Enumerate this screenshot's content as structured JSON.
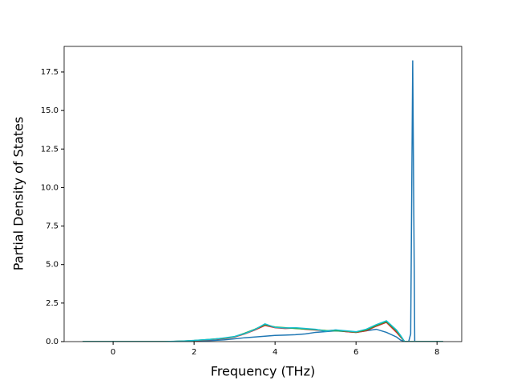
{
  "chart_data": {
    "type": "line",
    "x_label": "Frequency (THz)",
    "y_label": "Partial Density of States",
    "x": [
      -0.75,
      -0.5,
      -0.25,
      0,
      0.25,
      0.5,
      0.75,
      1,
      1.25,
      1.5,
      1.75,
      2,
      2.25,
      2.5,
      2.75,
      3,
      3.25,
      3.5,
      3.75,
      4,
      4.25,
      4.5,
      4.75,
      5,
      5.25,
      5.5,
      5.75,
      6,
      6.25,
      6.5,
      6.75,
      7,
      7.1,
      7.2,
      7.3,
      7.35,
      7.4,
      7.45,
      7.5,
      7.6,
      7.8,
      8,
      8.15
    ],
    "series": [
      {
        "color": "#1f77b4",
        "values": [
          0,
          0,
          0,
          0,
          0,
          0,
          0,
          0,
          0,
          0,
          0,
          0.02,
          0.05,
          0.08,
          0.12,
          0.18,
          0.25,
          0.3,
          0.35,
          0.4,
          0.42,
          0.45,
          0.5,
          0.6,
          0.65,
          0.7,
          0.65,
          0.6,
          0.7,
          0.8,
          0.6,
          0.3,
          0.1,
          0,
          0,
          0.5,
          18.25,
          0,
          0,
          0,
          0,
          0,
          0
        ]
      },
      {
        "color": "#d62728",
        "values": [
          0,
          0,
          0,
          0,
          0,
          0,
          0,
          0,
          0,
          0.01,
          0.03,
          0.06,
          0.1,
          0.15,
          0.2,
          0.3,
          0.5,
          0.75,
          1.05,
          0.9,
          0.85,
          0.88,
          0.8,
          0.75,
          0.7,
          0.75,
          0.65,
          0.6,
          0.7,
          1.0,
          1.25,
          0.6,
          0.3,
          0,
          0,
          0,
          0,
          0,
          0,
          0,
          0,
          0,
          0
        ]
      },
      {
        "color": "#2ca02c",
        "values": [
          0,
          0,
          0,
          0,
          0,
          0,
          0,
          0,
          0,
          0.01,
          0.04,
          0.07,
          0.12,
          0.17,
          0.22,
          0.32,
          0.55,
          0.8,
          1.1,
          0.95,
          0.9,
          0.85,
          0.82,
          0.78,
          0.72,
          0.7,
          0.68,
          0.62,
          0.75,
          1.05,
          1.3,
          0.7,
          0.35,
          0,
          0,
          0,
          0,
          0,
          0,
          0,
          0,
          0,
          0
        ]
      },
      {
        "color": "#17becf",
        "values": [
          0,
          0,
          0,
          0,
          0,
          0,
          0,
          0,
          0,
          0.02,
          0.04,
          0.08,
          0.12,
          0.16,
          0.24,
          0.33,
          0.52,
          0.78,
          1.15,
          0.92,
          0.88,
          0.9,
          0.85,
          0.8,
          0.68,
          0.76,
          0.7,
          0.64,
          0.8,
          1.1,
          1.35,
          0.75,
          0.4,
          0,
          0,
          0,
          0,
          0,
          0,
          0,
          0,
          0,
          0
        ]
      }
    ],
    "xlim": [
      -1.21,
      8.61
    ],
    "ylim": [
      0,
      19.16
    ],
    "xticks": [
      0,
      2,
      4,
      6,
      8
    ],
    "yticks": [
      {
        "value": 0,
        "label": "0.0"
      },
      2.5,
      {
        "value": 5,
        "label": "5.0"
      },
      7.5,
      {
        "value": 10,
        "label": "10.0"
      },
      12.5,
      {
        "value": 15,
        "label": "15.0"
      },
      17.5
    ]
  }
}
